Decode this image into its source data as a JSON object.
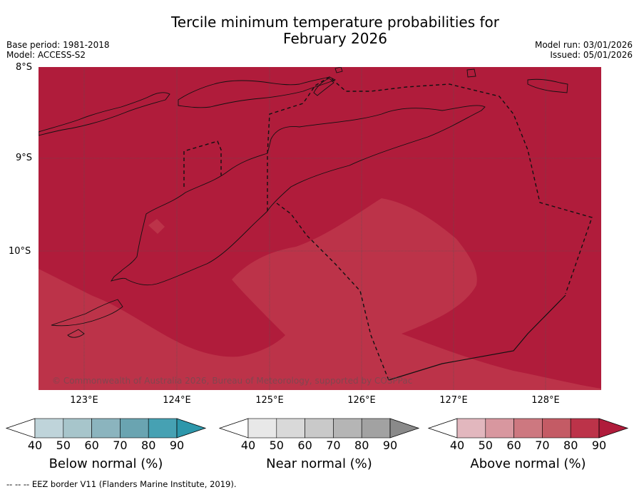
{
  "title_line1": "Tercile minimum temperature probabilities for",
  "title_line2": "February 2026",
  "meta_left": {
    "base_period": "Base period: 1981-2018",
    "model": "Model: ACCESS-S2"
  },
  "meta_right": {
    "model_run": "Model run: 03/01/2026",
    "issued": "Issued: 05/01/2026"
  },
  "axes": {
    "lat_labels": [
      "8°S",
      "9°S",
      "10°S"
    ],
    "lon_labels": [
      "123°E",
      "124°E",
      "125°E",
      "126°E",
      "127°E",
      "128°E"
    ]
  },
  "colors": {
    "above_90": "#b01c3b",
    "above_80": "#bc3349",
    "below": [
      "#bfd4da",
      "#a7c5cb",
      "#8bb4be",
      "#6aa4b1",
      "#46a1b3",
      "#2d97ab"
    ],
    "near": [
      "#e8e8e8",
      "#d9d9d9",
      "#c9c9c9",
      "#b5b5b5",
      "#a2a2a2",
      "#8a8a8a"
    ],
    "above": [
      "#e2b7be",
      "#d8979f",
      "#cd7880",
      "#c45b65",
      "#bc3349",
      "#b01c3b"
    ]
  },
  "colorbars": [
    {
      "title": "Below normal (%)",
      "ticks": [
        "40",
        "50",
        "60",
        "70",
        "80",
        "90"
      ]
    },
    {
      "title": "Near normal (%)",
      "ticks": [
        "40",
        "50",
        "60",
        "70",
        "80",
        "90"
      ]
    },
    {
      "title": "Above normal (%)",
      "ticks": [
        "40",
        "50",
        "60",
        "70",
        "80",
        "90"
      ]
    }
  ],
  "copyright": "© Commonwealth of Australia 2026, Bureau of Meteorology, supported by COSPPac",
  "footer": "--  --  -- EEZ border V11 (Flanders Marine Institute, 2019)."
}
